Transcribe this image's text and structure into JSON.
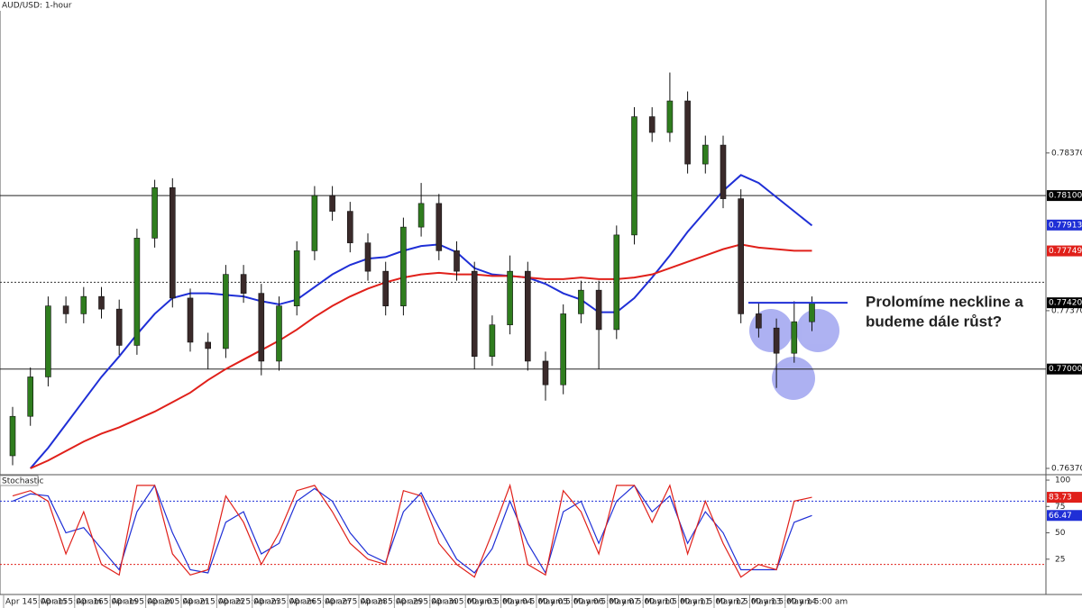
{
  "chart_data": {
    "type": "candlestick",
    "title": "AUD/USD: 1-hour",
    "dates": [
      "Apr 14",
      "Apr 15",
      "Apr 16",
      "Apr 19",
      "Apr 20",
      "Apr 21",
      "Apr 22",
      "Apr 23",
      "Apr 26",
      "Apr 27",
      "Apr 28",
      "Apr 29",
      "Apr 30",
      "May 03",
      "May 04",
      "May 05",
      "May 06",
      "May 07",
      "May 10",
      "May 11",
      "May 12",
      "May 13",
      "May 14"
    ],
    "time_label": "5:00 am",
    "open": [
      0.7645,
      0.767,
      0.7695,
      0.774,
      0.7735,
      0.7746,
      0.7738,
      0.7715,
      0.7783,
      0.7815,
      0.7745,
      0.7717,
      0.7713,
      0.776,
      0.7748,
      0.7705,
      0.774,
      0.7775,
      0.781,
      0.78,
      0.778,
      0.7762,
      0.774,
      0.779,
      0.7805,
      0.7775,
      0.7762,
      0.7708,
      0.7728,
      0.7762,
      0.7705,
      0.769,
      0.7735,
      0.775,
      0.7725,
      0.7785,
      0.786,
      0.785,
      0.787,
      0.783,
      0.7842,
      0.7808,
      0.7735,
      0.7726,
      0.771,
      0.773
    ],
    "high": [
      0.7676,
      0.7701,
      0.7746,
      0.7746,
      0.7752,
      0.7752,
      0.7744,
      0.7789,
      0.782,
      0.7821,
      0.7751,
      0.7723,
      0.7766,
      0.7766,
      0.7754,
      0.7746,
      0.7781,
      0.7816,
      0.7816,
      0.7806,
      0.7786,
      0.7768,
      0.7796,
      0.7818,
      0.7811,
      0.7781,
      0.7768,
      0.7734,
      0.7772,
      0.7768,
      0.7711,
      0.7741,
      0.7756,
      0.7756,
      0.7791,
      0.7866,
      0.7866,
      0.7888,
      0.7876,
      0.7848,
      0.7848,
      0.7814,
      0.7742,
      0.7732,
      0.7743,
      0.7746
    ],
    "low": [
      0.7639,
      0.7664,
      0.7689,
      0.7729,
      0.7729,
      0.7732,
      0.7709,
      0.7709,
      0.7777,
      0.7739,
      0.7711,
      0.77,
      0.7707,
      0.7742,
      0.7696,
      0.7699,
      0.7734,
      0.7769,
      0.7794,
      0.7774,
      0.7756,
      0.7734,
      0.7734,
      0.7784,
      0.7769,
      0.7756,
      0.77,
      0.7702,
      0.7722,
      0.7699,
      0.768,
      0.7684,
      0.7729,
      0.77,
      0.7719,
      0.7779,
      0.7844,
      0.7844,
      0.7824,
      0.7824,
      0.7802,
      0.7729,
      0.772,
      0.7688,
      0.7704,
      0.7724
    ],
    "close": [
      0.767,
      0.7695,
      0.774,
      0.7735,
      0.7746,
      0.7738,
      0.7715,
      0.7783,
      0.7815,
      0.7745,
      0.7717,
      0.7713,
      0.776,
      0.7748,
      0.7705,
      0.774,
      0.7775,
      0.781,
      0.78,
      0.778,
      0.7762,
      0.774,
      0.779,
      0.7805,
      0.7775,
      0.7762,
      0.7708,
      0.7728,
      0.7762,
      0.7705,
      0.769,
      0.7735,
      0.775,
      0.7725,
      0.7785,
      0.786,
      0.785,
      0.787,
      0.783,
      0.7842,
      0.7808,
      0.7735,
      0.7726,
      0.771,
      0.773,
      0.7742
    ],
    "up_color": "#2f7d1e",
    "down_color": "#3a2a2a",
    "moving_averages": [
      {
        "color": "#1f2fd6",
        "values": [
          null,
          0.7637,
          0.765,
          0.7665,
          0.768,
          0.7695,
          0.7708,
          0.7722,
          0.7735,
          0.7745,
          0.7748,
          0.7748,
          0.7747,
          0.7746,
          0.7743,
          0.7741,
          0.7744,
          0.7752,
          0.776,
          0.7766,
          0.777,
          0.7771,
          0.7775,
          0.7778,
          0.7779,
          0.7774,
          0.7764,
          0.776,
          0.7759,
          0.7758,
          0.7754,
          0.7748,
          0.7744,
          0.7736,
          0.7736,
          0.7745,
          0.7758,
          0.7772,
          0.7787,
          0.78,
          0.7813,
          0.7823,
          0.7818,
          0.7809,
          0.78,
          0.7791
        ],
        "label": {
          "value": 0.77913,
          "label": "0.77913"
        }
      },
      {
        "color": "#e0201a",
        "values": [
          null,
          0.7637,
          0.7642,
          0.7648,
          0.7654,
          0.7659,
          0.7663,
          0.7668,
          0.7673,
          0.7679,
          0.7685,
          0.7693,
          0.77,
          0.7706,
          0.7712,
          0.7718,
          0.7725,
          0.7733,
          0.774,
          0.7746,
          0.7751,
          0.7755,
          0.7758,
          0.776,
          0.7761,
          0.776,
          0.776,
          0.7759,
          0.7759,
          0.7758,
          0.7757,
          0.7757,
          0.7758,
          0.7757,
          0.7757,
          0.7758,
          0.776,
          0.7764,
          0.7768,
          0.7772,
          0.7776,
          0.7779,
          0.7777,
          0.7776,
          0.7775,
          0.7775
        ],
        "label": {
          "value": 0.77749,
          "label": "0.77749"
        }
      }
    ],
    "levels": [
      {
        "value": 0.781,
        "label": "0.78100"
      },
      {
        "value": 0.77,
        "label": "0.77000"
      }
    ],
    "dotted_level": 0.7755,
    "last_price": {
      "value": 0.7742,
      "label": "0.77420"
    },
    "neckline": 0.7742,
    "ylim": [
      0.7633,
      0.7934
    ],
    "yticks": [
      {
        "value": 0.7837,
        "label": "0.78370"
      },
      {
        "value": 0.7737,
        "label": "0.77370"
      },
      {
        "value": 0.7637,
        "label": "0.76370"
      }
    ],
    "annotation": [
      "Prolomíme neckline a",
      "budeme dále růst?"
    ],
    "stochastic": {
      "title": "Stochastic",
      "ylim": [
        -8.5,
        104.3
      ],
      "yticks": [
        100,
        75,
        50,
        25
      ],
      "overbought": 80,
      "oversold": 20,
      "k": {
        "color": "#e0201a",
        "values": [
          85,
          90,
          80,
          30,
          70,
          20,
          10,
          95,
          95,
          30,
          10,
          15,
          85,
          60,
          20,
          50,
          90,
          95,
          70,
          40,
          25,
          20,
          90,
          85,
          40,
          20,
          8,
          50,
          95,
          20,
          10,
          90,
          70,
          30,
          95,
          95,
          60,
          95,
          30,
          80,
          40,
          8,
          20,
          15,
          80,
          83.73
        ]
      },
      "d": {
        "color": "#1f2fd6",
        "values": [
          80,
          87,
          85,
          50,
          55,
          35,
          15,
          70,
          95,
          50,
          15,
          12,
          60,
          70,
          30,
          40,
          80,
          92,
          80,
          50,
          30,
          22,
          70,
          88,
          55,
          25,
          12,
          35,
          80,
          40,
          12,
          70,
          80,
          40,
          80,
          95,
          70,
          85,
          40,
          70,
          50,
          15,
          15,
          15,
          60,
          66.47
        ]
      }
    }
  }
}
